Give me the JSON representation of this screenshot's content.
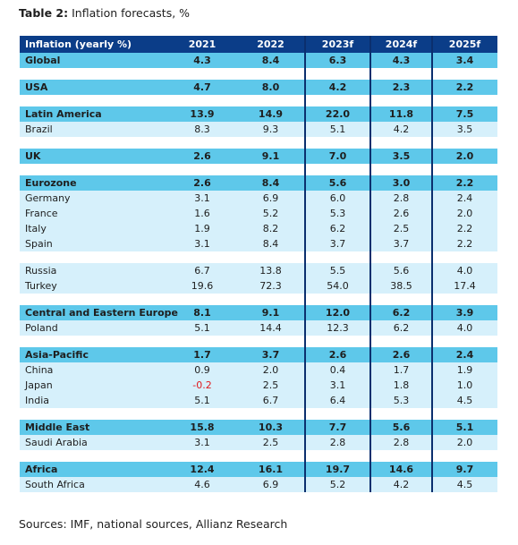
{
  "title": {
    "bold": "Table 2:",
    "rest": " Inflation forecasts, %"
  },
  "header": [
    "Inflation (yearly %)",
    "2021",
    "2022",
    "2023f",
    "2024f",
    "2025f"
  ],
  "rows": [
    {
      "type": "region",
      "cells": [
        "Global",
        "4.3",
        "8.4",
        "6.3",
        "4.3",
        "3.4"
      ]
    },
    {
      "type": "gap"
    },
    {
      "type": "region",
      "cells": [
        "USA",
        "4.7",
        "8.0",
        "4.2",
        "2.3",
        "2.2"
      ]
    },
    {
      "type": "gap"
    },
    {
      "type": "region",
      "cells": [
        "Latin America",
        "13.9",
        "14.9",
        "22.0",
        "11.8",
        "7.5"
      ]
    },
    {
      "type": "sub",
      "cells": [
        "Brazil",
        "8.3",
        "9.3",
        "5.1",
        "4.2",
        "3.5"
      ]
    },
    {
      "type": "gap"
    },
    {
      "type": "region",
      "cells": [
        "UK",
        "2.6",
        "9.1",
        "7.0",
        "3.5",
        "2.0"
      ]
    },
    {
      "type": "gap"
    },
    {
      "type": "region",
      "cells": [
        "Eurozone",
        "2.6",
        "8.4",
        "5.6",
        "3.0",
        "2.2"
      ]
    },
    {
      "type": "sub",
      "cells": [
        "Germany",
        "3.1",
        "6.9",
        "6.0",
        "2.8",
        "2.4"
      ]
    },
    {
      "type": "sub",
      "cells": [
        "France",
        "1.6",
        "5.2",
        "5.3",
        "2.6",
        "2.0"
      ]
    },
    {
      "type": "sub",
      "cells": [
        "Italy",
        "1.9",
        "8.2",
        "6.2",
        "2.5",
        "2.2"
      ]
    },
    {
      "type": "sub",
      "cells": [
        "Spain",
        "3.1",
        "8.4",
        "3.7",
        "3.7",
        "2.2"
      ]
    },
    {
      "type": "gap"
    },
    {
      "type": "sub",
      "cells": [
        "Russia",
        "6.7",
        "13.8",
        "5.5",
        "5.6",
        "4.0"
      ]
    },
    {
      "type": "sub",
      "cells": [
        "Turkey",
        "19.6",
        "72.3",
        "54.0",
        "38.5",
        "17.4"
      ]
    },
    {
      "type": "gap"
    },
    {
      "type": "region",
      "cells": [
        "Central and Eastern Europe",
        "8.1",
        "9.1",
        "12.0",
        "6.2",
        "3.9"
      ]
    },
    {
      "type": "sub",
      "cells": [
        "Poland",
        "5.1",
        "14.4",
        "12.3",
        "6.2",
        "4.0"
      ]
    },
    {
      "type": "gap"
    },
    {
      "type": "region",
      "cells": [
        "Asia-Pacific",
        "1.7",
        "3.7",
        "2.6",
        "2.6",
        "2.4"
      ]
    },
    {
      "type": "sub",
      "cells": [
        "China",
        "0.9",
        "2.0",
        "0.4",
        "1.7",
        "1.9"
      ]
    },
    {
      "type": "sub",
      "cells": [
        "Japan",
        "-0.2",
        "2.5",
        "3.1",
        "1.8",
        "1.0"
      ]
    },
    {
      "type": "sub",
      "cells": [
        "India",
        "5.1",
        "6.7",
        "6.4",
        "5.3",
        "4.5"
      ]
    },
    {
      "type": "gap"
    },
    {
      "type": "region",
      "cells": [
        "Middle East",
        "15.8",
        "10.3",
        "7.7",
        "5.6",
        "5.1"
      ]
    },
    {
      "type": "sub",
      "cells": [
        "Saudi Arabia",
        "3.1",
        "2.5",
        "2.8",
        "2.8",
        "2.0"
      ]
    },
    {
      "type": "gap"
    },
    {
      "type": "region",
      "cells": [
        "Africa",
        "12.4",
        "16.1",
        "19.7",
        "14.6",
        "9.7"
      ]
    },
    {
      "type": "sub",
      "cells": [
        "South Africa",
        "4.6",
        "6.9",
        "5.2",
        "4.2",
        "4.5"
      ]
    }
  ],
  "source": "Sources: IMF, national sources, Allianz Research",
  "colors": {
    "header": "#0b3d88",
    "region": "#5ec8ea",
    "sub": "#d6f0fb",
    "negative": "#e0191e"
  }
}
